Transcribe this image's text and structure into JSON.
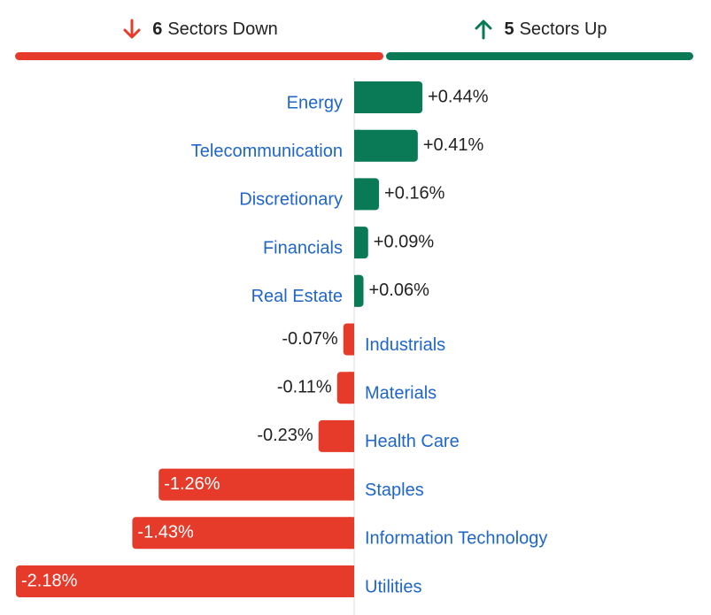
{
  "header": {
    "down": {
      "count": "6",
      "label": "Sectors Down",
      "icon": "arrow-down-icon",
      "color": "#e63b2a"
    },
    "up": {
      "count": "5",
      "label": "Sectors Up",
      "icon": "arrow-up-icon",
      "color": "#0a7a56"
    }
  },
  "colors": {
    "positive": "#0a7a56",
    "negative": "#e63b2a",
    "category_text": "#1f66c8",
    "value_text": "#222222",
    "value_text_inside": "#ffffff",
    "axis": "#dddddd"
  },
  "chart_data": {
    "type": "bar",
    "orientation": "horizontal",
    "categories": [
      "Energy",
      "Telecommunication",
      "Discretionary",
      "Financials",
      "Real Estate",
      "Industrials",
      "Materials",
      "Health Care",
      "Staples",
      "Information Technology",
      "Utilities"
    ],
    "values": [
      0.44,
      0.41,
      0.16,
      0.09,
      0.06,
      -0.07,
      -0.11,
      -0.23,
      -1.26,
      -1.43,
      -2.18
    ],
    "value_labels": [
      "+0.44%",
      "+0.41%",
      "+0.16%",
      "+0.09%",
      "+0.06%",
      "-0.07%",
      "-0.11%",
      "-0.23%",
      "-1.26%",
      "-1.43%",
      "-2.18%"
    ],
    "unit": "%",
    "xlim": [
      -2.18,
      2.18
    ]
  }
}
